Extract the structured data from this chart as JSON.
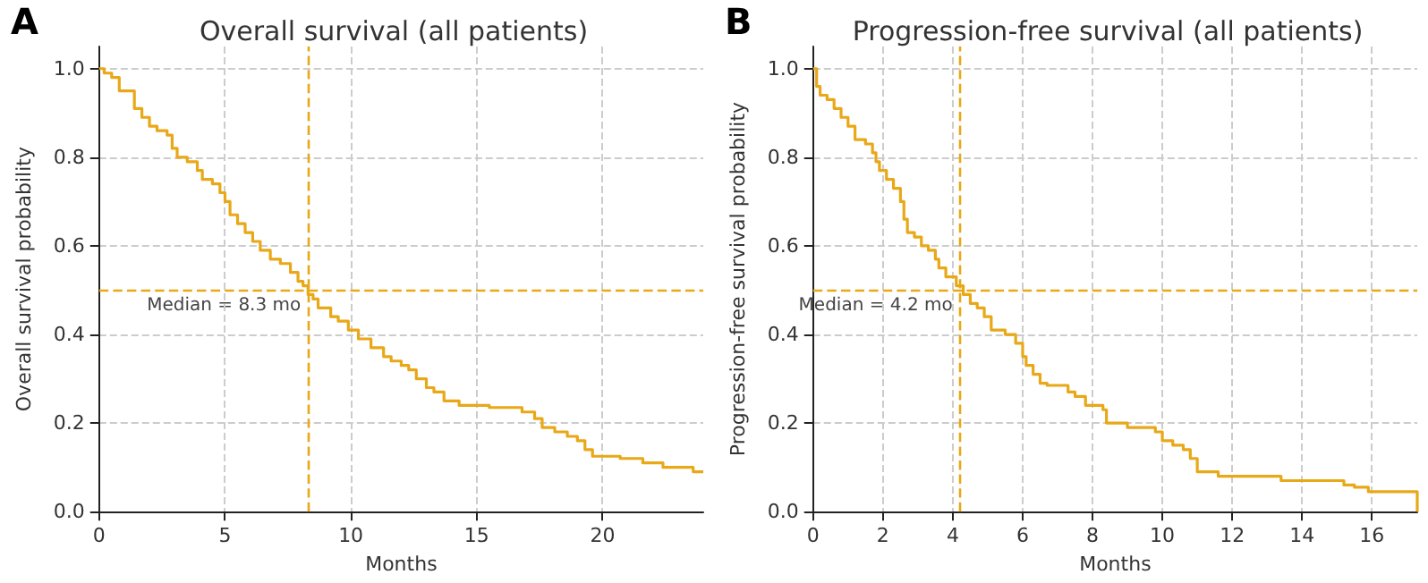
{
  "chart_data": [
    {
      "type": "step",
      "title": "Overall survival (all patients)",
      "xlabel": "Months",
      "ylabel": "Overall survival probability",
      "annotations": [
        "A"
      ],
      "x": [
        0,
        0.2,
        0.5,
        0.8,
        1.4,
        1.7,
        2.0,
        2.3,
        2.7,
        2.9,
        3.1,
        3.5,
        3.9,
        4.1,
        4.5,
        4.8,
        5.0,
        5.2,
        5.5,
        5.8,
        6.1,
        6.4,
        6.8,
        7.2,
        7.6,
        7.9,
        8.1,
        8.3,
        8.5,
        8.7,
        9.2,
        9.5,
        9.9,
        10.3,
        10.8,
        11.3,
        11.6,
        12.0,
        12.3,
        12.6,
        13.0,
        13.3,
        13.7,
        14.3,
        15.5,
        16.8,
        17.3,
        17.6,
        18.1,
        18.6,
        19.0,
        19.3,
        19.6,
        20.7,
        21.6,
        22.4,
        23.6,
        24
      ],
      "series": [
        {
          "color": "#e8a817",
          "values": [
            1.0,
            0.99,
            0.98,
            0.95,
            0.91,
            0.89,
            0.87,
            0.86,
            0.85,
            0.82,
            0.8,
            0.79,
            0.77,
            0.75,
            0.74,
            0.72,
            0.7,
            0.67,
            0.65,
            0.63,
            0.61,
            0.59,
            0.57,
            0.56,
            0.54,
            0.52,
            0.51,
            0.49,
            0.48,
            0.46,
            0.44,
            0.43,
            0.41,
            0.39,
            0.37,
            0.35,
            0.34,
            0.33,
            0.32,
            0.3,
            0.28,
            0.27,
            0.25,
            0.24,
            0.235,
            0.225,
            0.21,
            0.19,
            0.18,
            0.17,
            0.16,
            0.14,
            0.125,
            0.12,
            0.11,
            0.1,
            0.09,
            0.09
          ]
        }
      ],
      "xlim": [
        0,
        24
      ],
      "xticks": [
        0,
        5,
        10,
        15,
        20
      ],
      "ylim": [
        0,
        1.05
      ],
      "yticks": [
        {
          "value": 0,
          "label": "0.0"
        },
        {
          "value": 0.2,
          "label": "0.2"
        },
        {
          "value": 0.4,
          "label": "0.4"
        },
        {
          "value": 0.6,
          "label": "0.6"
        },
        {
          "value": 0.8,
          "label": "0.8"
        },
        {
          "value": 1,
          "label": "1.0"
        }
      ],
      "ref_lines": [
        {
          "axis": "x",
          "value": 8.3,
          "label": "Median = 8.3 mo",
          "color": "#e8a817",
          "line_style": "dashed"
        },
        {
          "axis": "y",
          "value": 0.5,
          "color": "#e8a817",
          "line_style": "dashed"
        }
      ],
      "grid": true,
      "line_style": "solid"
    },
    {
      "type": "step",
      "title": "Progression-free survival (all patients)",
      "xlabel": "Months",
      "ylabel": "Progression-free survival probability",
      "annotations": [
        "B"
      ],
      "x": [
        0,
        0.1,
        0.2,
        0.4,
        0.6,
        0.8,
        1.0,
        1.2,
        1.5,
        1.7,
        1.8,
        1.9,
        2.1,
        2.3,
        2.5,
        2.6,
        2.7,
        2.9,
        3.1,
        3.3,
        3.5,
        3.6,
        3.8,
        4.1,
        4.3,
        4.5,
        4.7,
        4.9,
        5.1,
        5.5,
        5.8,
        6.0,
        6.1,
        6.3,
        6.5,
        6.7,
        7.3,
        7.5,
        7.8,
        8.3,
        8.4,
        9.0,
        9.8,
        10.0,
        10.3,
        10.6,
        10.8,
        11.0,
        11.6,
        13.4,
        15.2,
        15.5,
        15.9,
        17.3
      ],
      "series": [
        {
          "color": "#e8a817",
          "values": [
            1.0,
            0.96,
            0.94,
            0.93,
            0.91,
            0.89,
            0.87,
            0.84,
            0.83,
            0.81,
            0.79,
            0.77,
            0.75,
            0.73,
            0.7,
            0.66,
            0.63,
            0.62,
            0.6,
            0.59,
            0.57,
            0.55,
            0.53,
            0.51,
            0.49,
            0.47,
            0.46,
            0.44,
            0.41,
            0.4,
            0.38,
            0.35,
            0.33,
            0.31,
            0.29,
            0.285,
            0.27,
            0.26,
            0.24,
            0.23,
            0.2,
            0.19,
            0.18,
            0.16,
            0.15,
            0.14,
            0.12,
            0.09,
            0.08,
            0.07,
            0.06,
            0.055,
            0.045,
            0.0
          ]
        }
      ],
      "xlim": [
        0,
        17.3
      ],
      "xticks": [
        0,
        2,
        4,
        6,
        8,
        10,
        12,
        14,
        16
      ],
      "ylim": [
        0,
        1.05
      ],
      "yticks": [
        {
          "value": 0,
          "label": "0.0"
        },
        {
          "value": 0.2,
          "label": "0.2"
        },
        {
          "value": 0.4,
          "label": "0.4"
        },
        {
          "value": 0.6,
          "label": "0.6"
        },
        {
          "value": 0.8,
          "label": "0.8"
        },
        {
          "value": 1,
          "label": "1.0"
        }
      ],
      "ref_lines": [
        {
          "axis": "x",
          "value": 4.2,
          "label": "Median = 4.2 mo",
          "color": "#e8a817",
          "line_style": "dashed"
        },
        {
          "axis": "y",
          "value": 0.5,
          "color": "#e8a817",
          "line_style": "dashed"
        }
      ],
      "grid": true,
      "line_style": "solid"
    }
  ]
}
